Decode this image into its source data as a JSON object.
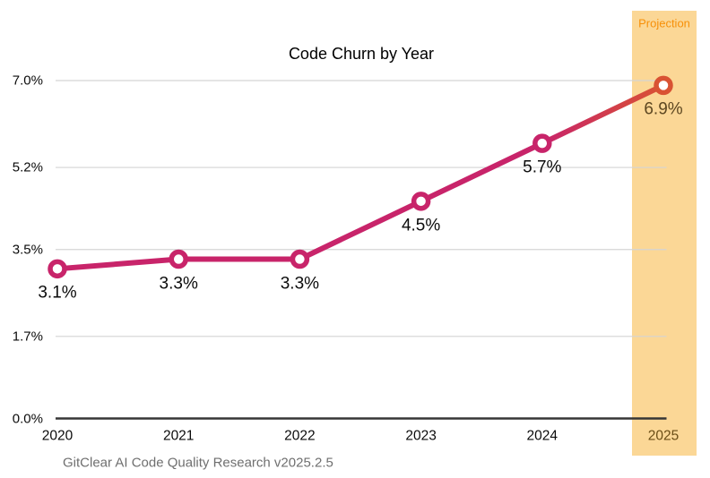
{
  "footer": {
    "text": "GitClear AI Code Quality Research v2025.2.5"
  },
  "colors": {
    "line": "#C8246A",
    "line_projection": "#D95233",
    "marker_fill": "#FFFFFF",
    "band_fill": "#FBD796",
    "band_label_text": "#F79009",
    "grid": "#D4D4D4",
    "axis": "#363636",
    "text": "#0B0B0B",
    "footer_text": "#6F6F6F",
    "projection_tick_text": "#6B4E16",
    "projection_point_text": "#5D4721"
  },
  "chart_data": {
    "type": "line",
    "title": "Code Churn by Year",
    "x_labels": [
      "2020",
      "2021",
      "2022",
      "2023",
      "2024",
      "2025"
    ],
    "values": [
      3.1,
      3.3,
      3.3,
      4.5,
      5.7,
      6.9
    ],
    "point_labels": [
      "3.1%",
      "3.3%",
      "3.3%",
      "4.5%",
      "5.7%",
      "6.9%"
    ],
    "ylim": [
      0,
      7.0
    ],
    "y_ticks": [
      {
        "value": 0,
        "label": "0.0%"
      },
      {
        "value": 1.7,
        "label": "1.7%"
      },
      {
        "value": 3.5,
        "label": "3.5%"
      },
      {
        "value": 5.2,
        "label": "5.2%"
      },
      {
        "value": 7.0,
        "label": "7.0%"
      }
    ],
    "grid": true,
    "legend": false,
    "projection": {
      "x_label": "2025",
      "band_label": "Projection"
    }
  }
}
